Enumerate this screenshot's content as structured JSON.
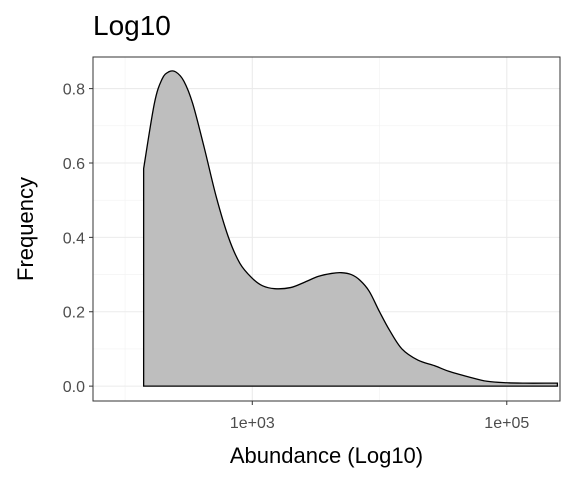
{
  "chart_data": {
    "type": "area",
    "title": "Log10",
    "xlabel": "Abundance (Log10)",
    "ylabel": "Frequency",
    "x_scale": "log10",
    "xlim": [
      56,
      262000
    ],
    "ylim": [
      -0.04,
      0.885
    ],
    "x_ticks": [
      {
        "value": 1000,
        "label": "1e+03"
      },
      {
        "value": 100000,
        "label": "1e+05"
      }
    ],
    "y_ticks": [
      {
        "value": 0.0,
        "label": "0.0"
      },
      {
        "value": 0.2,
        "label": "0.2"
      },
      {
        "value": 0.4,
        "label": "0.4"
      },
      {
        "value": 0.6,
        "label": "0.6"
      },
      {
        "value": 0.8,
        "label": "0.8"
      }
    ],
    "grid": true,
    "fill_color": "#bebebe",
    "line_color": "#000000",
    "series": [
      {
        "x": [
          140,
          170,
          195,
          220,
          250,
          290,
          340,
          420,
          520,
          650,
          800,
          1000,
          1200,
          1500,
          2000,
          2600,
          3300,
          4200,
          5000,
          6000,
          7000,
          8300,
          10000,
          12000,
          15000,
          20000,
          27000,
          35000,
          50000,
          70000,
          100000,
          140000,
          200000,
          250000
        ],
        "y": [
          0.585,
          0.76,
          0.825,
          0.845,
          0.845,
          0.82,
          0.76,
          0.64,
          0.51,
          0.4,
          0.33,
          0.29,
          0.27,
          0.262,
          0.265,
          0.28,
          0.295,
          0.303,
          0.305,
          0.3,
          0.285,
          0.255,
          0.2,
          0.15,
          0.1,
          0.07,
          0.055,
          0.04,
          0.025,
          0.013,
          0.009,
          0.008,
          0.008,
          0.008
        ]
      }
    ]
  }
}
